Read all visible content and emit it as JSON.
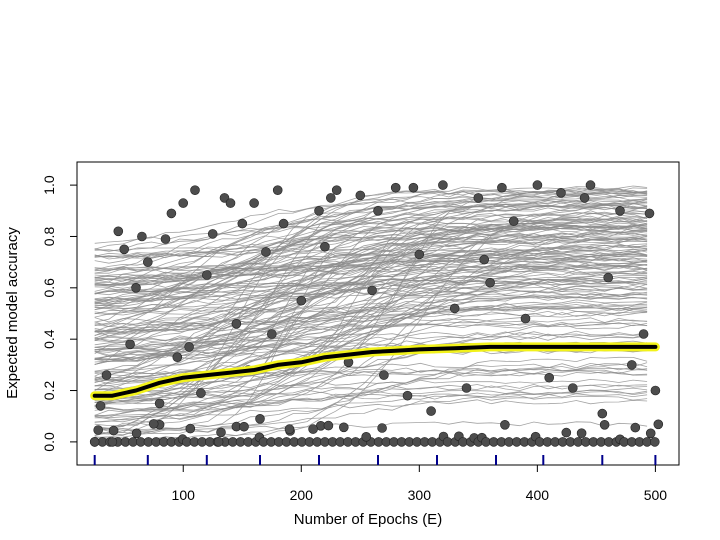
{
  "chart_data": {
    "type": "line",
    "xlabel": "Number of Epochs (E)",
    "ylabel": "Expected model accuracy",
    "xlim": [
      10,
      520
    ],
    "ylim": [
      -0.09,
      1.09
    ],
    "x_ticks": [
      100,
      200,
      300,
      400,
      500
    ],
    "y_ticks": [
      0.0,
      0.2,
      0.4,
      0.6,
      0.8,
      1.0
    ],
    "y_tick_labels": [
      "0.0",
      "0.2",
      "0.4",
      "0.6",
      "0.8",
      "1.0"
    ],
    "grid": false,
    "rug_ticks_x": [
      25,
      70,
      120,
      165,
      215,
      265,
      315,
      365,
      405,
      455,
      500
    ],
    "mean_series": {
      "x": [
        25,
        40,
        60,
        80,
        100,
        120,
        140,
        160,
        180,
        200,
        220,
        240,
        260,
        280,
        300,
        330,
        360,
        400,
        450,
        500
      ],
      "y": [
        0.18,
        0.18,
        0.2,
        0.23,
        0.25,
        0.26,
        0.27,
        0.28,
        0.3,
        0.31,
        0.33,
        0.34,
        0.35,
        0.355,
        0.36,
        0.365,
        0.37,
        0.37,
        0.37,
        0.37
      ]
    },
    "points_x": [
      25,
      30,
      35,
      40,
      45,
      50,
      55,
      60,
      65,
      70,
      75,
      80,
      85,
      90,
      95,
      100,
      105,
      110,
      115,
      120,
      125,
      130,
      135,
      140,
      145,
      150,
      155,
      160,
      165,
      170,
      175,
      180,
      185,
      190,
      200,
      210,
      215,
      220,
      225,
      230,
      240,
      250,
      255,
      260,
      265,
      270,
      280,
      290,
      295,
      300,
      310,
      320,
      330,
      340,
      350,
      355,
      360,
      370,
      380,
      390,
      400,
      410,
      420,
      430,
      440,
      445,
      455,
      460,
      470,
      480,
      490,
      495,
      500
    ],
    "points_y": [
      0.0,
      0.14,
      0.26,
      0.0,
      0.82,
      0.75,
      0.38,
      0.6,
      0.8,
      0.7,
      0.07,
      0.15,
      0.79,
      0.89,
      0.33,
      0.93,
      0.37,
      0.98,
      0.19,
      0.65,
      0.81,
      0.0,
      0.95,
      0.93,
      0.46,
      0.85,
      0.28,
      0.93,
      0.09,
      0.74,
      0.42,
      0.98,
      0.85,
      0.05,
      0.55,
      0.05,
      0.9,
      0.76,
      0.95,
      0.98,
      0.31,
      0.96,
      0.02,
      0.59,
      0.9,
      0.26,
      0.99,
      0.18,
      0.99,
      0.73,
      0.12,
      1.0,
      0.52,
      0.21,
      0.95,
      0.71,
      0.62,
      0.99,
      0.86,
      0.48,
      1.0,
      0.25,
      0.97,
      0.21,
      0.95,
      1.0,
      0.11,
      0.64,
      0.9,
      0.3,
      0.42,
      0.89,
      0.2
    ]
  }
}
